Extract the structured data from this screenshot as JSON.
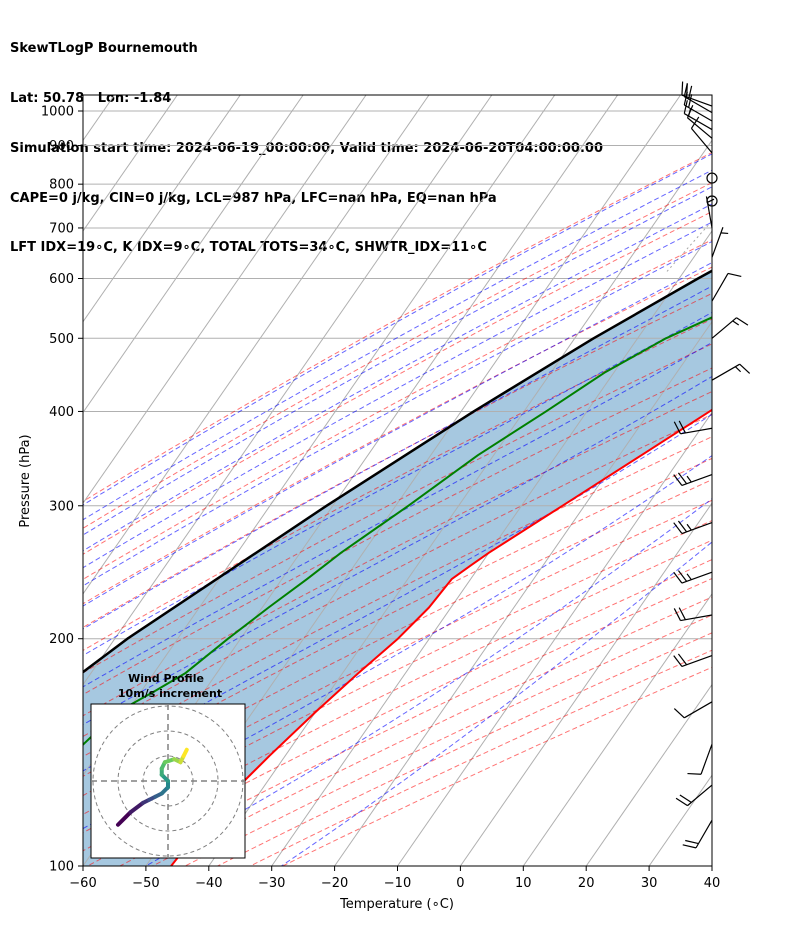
{
  "header": {
    "line1": "SkewTLogP Bournemouth",
    "line2": "Lat: 50.78   Lon: -1.84",
    "line3": "Simulation start time: 2024-06-19_00:00:00, Valid time: 2024-06-20T04:00:00.00",
    "line4": "CAPE=0 j/kg, CIN=0 j/kg, LCL=987 hPa, LFC=nan hPa, EQ=nan hPa",
    "line5": "LFT IDX=19∘C, K IDX=9∘C, TOTAL TOTS=34∘C, SHWTR_IDX=11∘C"
  },
  "chart_data": {
    "type": "line",
    "xlabel": "Temperature (∘C)",
    "ylabel": "Pressure (hPa)",
    "xlim": [
      -60,
      40
    ],
    "ylim": [
      1050,
      100
    ],
    "y_scale": "log",
    "grid": true,
    "x_ticks": [
      -60,
      -50,
      -40,
      -30,
      -20,
      -10,
      0,
      10,
      20,
      30,
      40
    ],
    "y_ticks": [
      1000,
      900,
      800,
      700,
      600,
      500,
      400,
      300,
      200,
      100
    ],
    "temperature": {
      "color": "#ff0000",
      "points": [
        [
          1030,
          7
        ],
        [
          1020,
          12
        ],
        [
          1000,
          14.5
        ],
        [
          980,
          15.5
        ],
        [
          960,
          15
        ],
        [
          940,
          14
        ],
        [
          920,
          13.3
        ],
        [
          900,
          13
        ],
        [
          880,
          12.6
        ],
        [
          860,
          12.3
        ],
        [
          840,
          12
        ],
        [
          820,
          12.3
        ],
        [
          800,
          12.2
        ],
        [
          780,
          12.3
        ],
        [
          760,
          12
        ],
        [
          740,
          11.5
        ],
        [
          720,
          10.5
        ],
        [
          700,
          9.5
        ],
        [
          650,
          7
        ],
        [
          600,
          4.5
        ],
        [
          550,
          1.5
        ],
        [
          500,
          -2
        ],
        [
          450,
          -5.5
        ],
        [
          400,
          -10.5
        ],
        [
          350,
          -16.5
        ],
        [
          300,
          -23.5
        ],
        [
          260,
          -30
        ],
        [
          250,
          -31.5
        ],
        [
          240,
          -33
        ],
        [
          220,
          -33.5
        ],
        [
          200,
          -35
        ],
        [
          180,
          -37.5
        ],
        [
          160,
          -40
        ],
        [
          140,
          -42.5
        ],
        [
          120,
          -45
        ],
        [
          110,
          -45.5
        ],
        [
          100,
          -46
        ]
      ]
    },
    "dewpoint": {
      "color": "#008000",
      "points": [
        [
          1030,
          6
        ],
        [
          1020,
          3
        ],
        [
          1000,
          1
        ],
        [
          980,
          -2.5
        ],
        [
          960,
          -5
        ],
        [
          940,
          -7.5
        ],
        [
          920,
          -8.5
        ],
        [
          900,
          -9.5
        ],
        [
          880,
          -10.5
        ],
        [
          860,
          -12.5
        ],
        [
          840,
          -15
        ],
        [
          820,
          -18
        ],
        [
          800,
          -21
        ],
        [
          780,
          -23
        ],
        [
          760,
          -20
        ],
        [
          740,
          -15.5
        ],
        [
          720,
          -9
        ],
        [
          700,
          -5
        ],
        [
          680,
          -4
        ],
        [
          660,
          -3.5
        ],
        [
          640,
          -4.5
        ],
        [
          600,
          -10.5
        ],
        [
          550,
          -18
        ],
        [
          500,
          -25.5
        ],
        [
          450,
          -31.5
        ],
        [
          400,
          -36.5
        ],
        [
          350,
          -42.5
        ],
        [
          300,
          -48
        ],
        [
          260,
          -53.5
        ],
        [
          240,
          -56
        ],
        [
          220,
          -59
        ],
        [
          200,
          -62
        ],
        [
          180,
          -65
        ],
        [
          170,
          -68
        ],
        [
          160,
          -71.5
        ],
        [
          140,
          -74
        ],
        [
          120,
          -76
        ],
        [
          100,
          -78
        ]
      ]
    },
    "parcel": {
      "color": "#000000",
      "points": [
        [
          1030,
          6.5
        ],
        [
          987,
          5.5
        ],
        [
          900,
          -2
        ],
        [
          800,
          -10
        ],
        [
          700,
          -18
        ],
        [
          600,
          -27
        ],
        [
          500,
          -37
        ],
        [
          400,
          -48
        ],
        [
          300,
          -61
        ],
        [
          200,
          -78
        ],
        [
          100,
          -101
        ]
      ]
    },
    "shaded_area": {
      "color": "#a6c8e0"
    },
    "wind_barbs": [
      {
        "p": 1015,
        "speed": 20,
        "dir": 290
      },
      {
        "p": 995,
        "speed": 20,
        "dir": 300
      },
      {
        "p": 970,
        "speed": 20,
        "dir": 300
      },
      {
        "p": 945,
        "speed": 15,
        "dir": 300
      },
      {
        "p": 920,
        "speed": 10,
        "dir": 310
      },
      {
        "p": 880,
        "speed": 10,
        "dir": 320
      },
      {
        "p": 815,
        "speed": 0,
        "dir": 0
      },
      {
        "p": 760,
        "speed": 0,
        "dir": 0
      },
      {
        "p": 700,
        "speed": 5,
        "dir": 350
      },
      {
        "p": 640,
        "speed": 5,
        "dir": 20
      },
      {
        "p": 560,
        "speed": 10,
        "dir": 30
      },
      {
        "p": 500,
        "speed": 15,
        "dir": 50
      },
      {
        "p": 440,
        "speed": 15,
        "dir": 60
      },
      {
        "p": 380,
        "speed": 20,
        "dir": 260
      },
      {
        "p": 330,
        "speed": 25,
        "dir": 250
      },
      {
        "p": 285,
        "speed": 25,
        "dir": 250
      },
      {
        "p": 245,
        "speed": 25,
        "dir": 250
      },
      {
        "p": 215,
        "speed": 20,
        "dir": 260
      },
      {
        "p": 190,
        "speed": 20,
        "dir": 250
      },
      {
        "p": 165,
        "speed": 10,
        "dir": 240
      },
      {
        "p": 145,
        "speed": 10,
        "dir": 200
      },
      {
        "p": 128,
        "speed": 20,
        "dir": 230
      },
      {
        "p": 115,
        "speed": 20,
        "dir": 210
      }
    ],
    "hodograph": {
      "title": "Wind Profile",
      "subtitle": "10m/s increment",
      "trace_uv": [
        [
          -8,
          -7
        ],
        [
          -6,
          -5
        ],
        [
          -4,
          -3.5
        ],
        [
          -3,
          -3
        ],
        [
          -2,
          -2.5
        ],
        [
          -1,
          -2
        ],
        [
          0,
          -1
        ],
        [
          0,
          0
        ],
        [
          -1,
          1
        ],
        [
          -1,
          2
        ],
        [
          -0.5,
          3
        ],
        [
          1,
          3.5
        ],
        [
          2,
          3
        ],
        [
          2.5,
          4
        ],
        [
          3,
          5
        ]
      ]
    }
  }
}
